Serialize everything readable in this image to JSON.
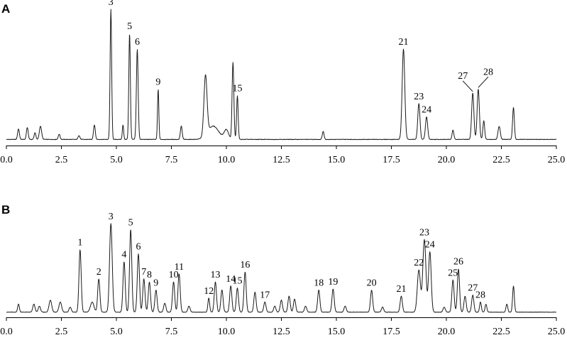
{
  "chart_data": [
    {
      "type": "line",
      "panel_label": "A",
      "xlim": [
        0,
        25
      ],
      "x_ticks": [
        "0.0",
        "2.5",
        "5.0",
        "7.5",
        "10.0",
        "12.5",
        "15.0",
        "17.5",
        "20.0",
        "22.5",
        "25.0"
      ],
      "grid": false,
      "baseline": 0.03,
      "peaks": [
        {
          "t": 0.55,
          "h": 0.08,
          "w": 0.04
        },
        {
          "t": 0.95,
          "h": 0.09,
          "w": 0.04
        },
        {
          "t": 1.3,
          "h": 0.05,
          "w": 0.04
        },
        {
          "t": 1.55,
          "h": 0.1,
          "w": 0.05
        },
        {
          "t": 2.4,
          "h": 0.04,
          "w": 0.04
        },
        {
          "t": 3.3,
          "h": 0.03,
          "w": 0.04
        },
        {
          "t": 4.0,
          "h": 0.11,
          "w": 0.04
        },
        {
          "t": 4.75,
          "h": 0.98,
          "w": 0.035,
          "label": "3"
        },
        {
          "t": 5.3,
          "h": 0.11,
          "w": 0.03
        },
        {
          "t": 5.6,
          "h": 0.8,
          "w": 0.035,
          "label": "5"
        },
        {
          "t": 5.95,
          "h": 0.68,
          "w": 0.04,
          "label": "6"
        },
        {
          "t": 6.9,
          "h": 0.38,
          "w": 0.03,
          "label": "9"
        },
        {
          "t": 7.95,
          "h": 0.1,
          "w": 0.04
        },
        {
          "t": 9.05,
          "h": 0.45,
          "w": 0.07
        },
        {
          "t": 9.4,
          "h": 0.1,
          "w": 0.25
        },
        {
          "t": 10.0,
          "h": 0.07,
          "w": 0.1
        },
        {
          "t": 10.3,
          "h": 0.58,
          "w": 0.04
        },
        {
          "t": 10.5,
          "h": 0.33,
          "w": 0.035,
          "label": "15"
        },
        {
          "t": 14.4,
          "h": 0.06,
          "w": 0.04
        },
        {
          "t": 18.05,
          "h": 0.68,
          "w": 0.06,
          "label": "21"
        },
        {
          "t": 18.75,
          "h": 0.27,
          "w": 0.05,
          "label": "23"
        },
        {
          "t": 19.1,
          "h": 0.17,
          "w": 0.05,
          "label": "24"
        },
        {
          "t": 20.3,
          "h": 0.07,
          "w": 0.04
        },
        {
          "t": 21.2,
          "h": 0.35,
          "w": 0.05,
          "label": "27"
        },
        {
          "t": 21.45,
          "h": 0.38,
          "w": 0.05,
          "label": "28"
        },
        {
          "t": 21.7,
          "h": 0.14,
          "w": 0.04
        },
        {
          "t": 22.4,
          "h": 0.1,
          "w": 0.05
        },
        {
          "t": 23.05,
          "h": 0.24,
          "w": 0.04
        }
      ]
    },
    {
      "type": "line",
      "panel_label": "B",
      "xlim": [
        0,
        25
      ],
      "x_ticks": [
        "0.0",
        "2.5",
        "5.0",
        "7.5",
        "10.0",
        "12.5",
        "15.0",
        "17.5",
        "20.0",
        "22.5",
        "25.0"
      ],
      "grid": false,
      "baseline": 0.03,
      "peaks": [
        {
          "t": 0.55,
          "h": 0.08,
          "w": 0.04
        },
        {
          "t": 1.25,
          "h": 0.08,
          "w": 0.05
        },
        {
          "t": 1.5,
          "h": 0.06,
          "w": 0.05
        },
        {
          "t": 2.0,
          "h": 0.12,
          "w": 0.06
        },
        {
          "t": 2.45,
          "h": 0.1,
          "w": 0.06
        },
        {
          "t": 2.9,
          "h": 0.05,
          "w": 0.05
        },
        {
          "t": 3.35,
          "h": 0.62,
          "w": 0.05,
          "label": "1"
        },
        {
          "t": 3.9,
          "h": 0.1,
          "w": 0.08
        },
        {
          "t": 4.2,
          "h": 0.33,
          "w": 0.05,
          "label": "2"
        },
        {
          "t": 4.75,
          "h": 0.88,
          "w": 0.06,
          "label": "3"
        },
        {
          "t": 5.35,
          "h": 0.5,
          "w": 0.05,
          "label": "4"
        },
        {
          "t": 5.65,
          "h": 0.82,
          "w": 0.05,
          "label": "5"
        },
        {
          "t": 6.0,
          "h": 0.58,
          "w": 0.05,
          "label": "6"
        },
        {
          "t": 6.25,
          "h": 0.33,
          "w": 0.05,
          "label": "7"
        },
        {
          "t": 6.5,
          "h": 0.3,
          "w": 0.05,
          "label": "8"
        },
        {
          "t": 6.8,
          "h": 0.22,
          "w": 0.05,
          "label": "9"
        },
        {
          "t": 7.2,
          "h": 0.09,
          "w": 0.05
        },
        {
          "t": 7.6,
          "h": 0.3,
          "w": 0.05,
          "label": "10"
        },
        {
          "t": 7.85,
          "h": 0.38,
          "w": 0.05,
          "label": "11"
        },
        {
          "t": 8.3,
          "h": 0.06,
          "w": 0.05
        },
        {
          "t": 9.2,
          "h": 0.14,
          "w": 0.04,
          "label": "12"
        },
        {
          "t": 9.5,
          "h": 0.3,
          "w": 0.05,
          "label": "13"
        },
        {
          "t": 9.8,
          "h": 0.22,
          "w": 0.05
        },
        {
          "t": 10.2,
          "h": 0.26,
          "w": 0.05,
          "label": "14"
        },
        {
          "t": 10.5,
          "h": 0.24,
          "w": 0.05,
          "label": "15"
        },
        {
          "t": 10.85,
          "h": 0.4,
          "w": 0.05,
          "label": "16"
        },
        {
          "t": 11.3,
          "h": 0.2,
          "w": 0.05
        },
        {
          "t": 11.75,
          "h": 0.1,
          "w": 0.05,
          "label": "17"
        },
        {
          "t": 12.2,
          "h": 0.06,
          "w": 0.05
        },
        {
          "t": 12.5,
          "h": 0.12,
          "w": 0.05
        },
        {
          "t": 12.85,
          "h": 0.16,
          "w": 0.05
        },
        {
          "t": 13.1,
          "h": 0.13,
          "w": 0.05
        },
        {
          "t": 13.6,
          "h": 0.06,
          "w": 0.05
        },
        {
          "t": 14.2,
          "h": 0.22,
          "w": 0.05,
          "label": "18"
        },
        {
          "t": 14.85,
          "h": 0.23,
          "w": 0.05,
          "label": "19"
        },
        {
          "t": 15.4,
          "h": 0.06,
          "w": 0.05
        },
        {
          "t": 16.6,
          "h": 0.22,
          "w": 0.05,
          "label": "20"
        },
        {
          "t": 17.1,
          "h": 0.05,
          "w": 0.05
        },
        {
          "t": 17.95,
          "h": 0.16,
          "w": 0.05,
          "label": "21"
        },
        {
          "t": 18.75,
          "h": 0.42,
          "w": 0.07,
          "label": "22"
        },
        {
          "t": 19.0,
          "h": 0.72,
          "w": 0.07,
          "label": "23"
        },
        {
          "t": 19.25,
          "h": 0.6,
          "w": 0.06,
          "label": "24"
        },
        {
          "t": 19.9,
          "h": 0.05,
          "w": 0.05
        },
        {
          "t": 20.3,
          "h": 0.32,
          "w": 0.05,
          "label": "25"
        },
        {
          "t": 20.55,
          "h": 0.43,
          "w": 0.05,
          "label": "26"
        },
        {
          "t": 20.85,
          "h": 0.16,
          "w": 0.05
        },
        {
          "t": 21.2,
          "h": 0.17,
          "w": 0.05,
          "label": "27"
        },
        {
          "t": 21.55,
          "h": 0.1,
          "w": 0.04,
          "label": "28"
        },
        {
          "t": 21.8,
          "h": 0.08,
          "w": 0.04
        },
        {
          "t": 22.75,
          "h": 0.08,
          "w": 0.04
        },
        {
          "t": 23.05,
          "h": 0.26,
          "w": 0.04
        }
      ]
    }
  ]
}
